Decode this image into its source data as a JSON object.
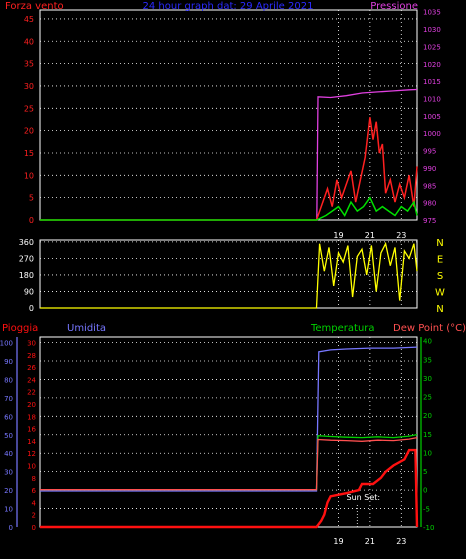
{
  "colors": {
    "background": "#000000",
    "frame": "#ffffff",
    "grid": "#ffffff",
    "wind": "#ff2020",
    "gust": "#00e000",
    "pressure": "#e040e0",
    "direction": "#ffff00",
    "rain": "#ff1010",
    "humidity": "#7777ff",
    "temperature": "#00d000",
    "dewpoint": "#ff5050",
    "title": "#2a2aff",
    "text": "#ffffff"
  },
  "chart_data": [
    {
      "id": "wind_pressure",
      "type": "line",
      "title": "24 hour graph dat: 29 Aprile 2021",
      "left_label": "Forza vento",
      "right_label": "Pressione",
      "left_ticks": [
        "0",
        "5",
        "10",
        "15",
        "20",
        "25",
        "30",
        "35",
        "40",
        "45"
      ],
      "right_ticks": [
        "975",
        "980",
        "985",
        "990",
        "995",
        "1000",
        "1005",
        "1010",
        "1015",
        "1020",
        "1025",
        "1030",
        "1035"
      ],
      "ylim_left": [
        0,
        47
      ],
      "ylim_right": [
        975,
        1035.5
      ],
      "x_ticks": [
        "19",
        "21",
        "23"
      ],
      "x_tick_hours": [
        19,
        21,
        23
      ],
      "xlim_hours": [
        0,
        24
      ],
      "grid": true,
      "series": [
        {
          "key": "pressure",
          "axis": "right",
          "x": [
            17.62,
            17.7,
            18.5,
            19.5,
            20.5,
            21.5,
            22.5,
            23.5,
            24.0
          ],
          "y": [
            975,
            1010.5,
            1010.3,
            1010.8,
            1011.6,
            1011.9,
            1012.2,
            1012.5,
            1012.6
          ]
        },
        {
          "key": "wind",
          "axis": "left",
          "x": [
            0,
            17.6,
            18.0,
            18.3,
            18.6,
            18.9,
            19.2,
            19.5,
            19.8,
            20.1,
            20.4,
            20.7,
            21.0,
            21.2,
            21.4,
            21.6,
            21.8,
            22.0,
            22.3,
            22.6,
            22.9,
            23.2,
            23.5,
            23.8,
            24.0
          ],
          "y": [
            0,
            0,
            4,
            7,
            3,
            9,
            5,
            8,
            11,
            4,
            9,
            14,
            23,
            18,
            22,
            15,
            17,
            6,
            9,
            4,
            8,
            5,
            10,
            3,
            12
          ]
        },
        {
          "key": "gust",
          "axis": "left",
          "x": [
            0,
            17.6,
            18.2,
            18.6,
            19.0,
            19.4,
            19.8,
            20.2,
            20.6,
            21.0,
            21.4,
            21.8,
            22.2,
            22.6,
            23.0,
            23.4,
            23.8,
            24.0
          ],
          "y": [
            0,
            0,
            1,
            2,
            3,
            1,
            4,
            2,
            3,
            5,
            2,
            3,
            2,
            1,
            3,
            2,
            4,
            1
          ]
        }
      ]
    },
    {
      "id": "wind_direction",
      "type": "line",
      "left_ticks": [
        "0",
        "90",
        "180",
        "270",
        "360"
      ],
      "ylim": [
        0,
        370
      ],
      "right_labels": [
        "N",
        "W",
        "S",
        "E",
        "N"
      ],
      "grid": true,
      "series": [
        {
          "key": "direction",
          "x": [
            0,
            17.6,
            17.8,
            18.1,
            18.4,
            18.7,
            19.0,
            19.3,
            19.6,
            19.9,
            20.2,
            20.5,
            20.8,
            21.1,
            21.4,
            21.7,
            22.0,
            22.3,
            22.6,
            22.9,
            23.2,
            23.5,
            23.8,
            24.0
          ],
          "y": [
            0,
            0,
            350,
            200,
            330,
            120,
            300,
            250,
            340,
            60,
            280,
            320,
            180,
            340,
            90,
            300,
            350,
            230,
            330,
            40,
            310,
            270,
            350,
            200
          ]
        }
      ]
    },
    {
      "id": "rain_humidity_temperature",
      "type": "line",
      "labels": {
        "rain": "Pioggia",
        "humidity": "Umidita",
        "temperature": "Temperatura",
        "dewpoint": "Dew Point (°C)"
      },
      "humidity_ticks": [
        "0",
        "10",
        "20",
        "30",
        "40",
        "50",
        "60",
        "70",
        "80",
        "90",
        "100"
      ],
      "rain_ticks": [
        "0",
        "2",
        "4",
        "6",
        "8",
        "10",
        "12",
        "14",
        "16",
        "18",
        "20",
        "22",
        "24",
        "26",
        "28",
        "30"
      ],
      "temp_ticks": [
        "-10",
        "-5",
        "0",
        "5",
        "10",
        "15",
        "20",
        "25",
        "30",
        "35",
        "40"
      ],
      "ylim_humidity": [
        0,
        103
      ],
      "ylim_temp": [
        -10,
        41
      ],
      "annotation": {
        "text": "Sun Set:",
        "hour": 20.2
      },
      "grid": true,
      "series": [
        {
          "key": "humidity",
          "x": [
            0,
            17.6,
            17.75,
            18.5,
            19.5,
            21,
            22.5,
            24
          ],
          "y": [
            19.5,
            19.5,
            95,
            96,
            96.5,
            97,
            97,
            97.5
          ]
        },
        {
          "key": "temperature",
          "x": [
            0,
            17.6,
            17.7,
            18.5,
            19.5,
            20.5,
            21.5,
            22.5,
            23.5,
            24
          ],
          "y": [
            0,
            0,
            14.5,
            14.3,
            14.1,
            14,
            14.2,
            14,
            14.4,
            14.8
          ]
        },
        {
          "key": "dewpoint",
          "x": [
            0,
            17.6,
            17.7,
            18.5,
            19.5,
            20.5,
            21.5,
            22.5,
            23.5,
            24
          ],
          "y": [
            0,
            0,
            13.5,
            13.3,
            13.2,
            13,
            13.3,
            13.2,
            13.6,
            14
          ]
        },
        {
          "key": "rain",
          "x": [
            0,
            17.6,
            17.9,
            18.1,
            18.3,
            18.5,
            19.5,
            20.3,
            20.5,
            21.2,
            21.7,
            22.0,
            22.5,
            23.2,
            23.5,
            23.9,
            24.0
          ],
          "y": [
            0,
            0,
            1,
            2,
            4,
            5,
            5.5,
            6,
            7,
            7,
            8,
            9,
            10,
            11,
            12.5,
            12.5,
            0
          ]
        }
      ]
    }
  ]
}
